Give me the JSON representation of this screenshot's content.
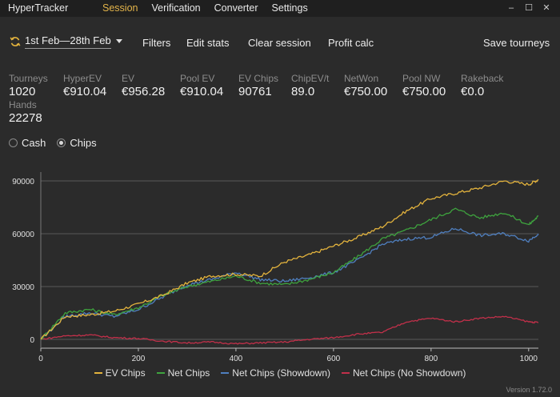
{
  "app": {
    "title": "HyperTracker",
    "version": "Version 1.72.0"
  },
  "menu": {
    "items": [
      {
        "label": "Session",
        "active": true
      },
      {
        "label": "Verification",
        "active": false
      },
      {
        "label": "Converter",
        "active": false
      },
      {
        "label": "Settings",
        "active": false
      }
    ]
  },
  "window_controls": {
    "minimize": "–",
    "maximize": "☐",
    "close": "✕"
  },
  "toolbar": {
    "date_range": "1st Feb—28th Feb",
    "filters": "Filters",
    "edit_stats": "Edit stats",
    "clear_session": "Clear session",
    "profit_calc": "Profit calc",
    "save_tourneys": "Save tourneys"
  },
  "stats": [
    {
      "label": "Tourneys",
      "value": "1020"
    },
    {
      "label": "HyperEV",
      "value": "€910.04"
    },
    {
      "label": "EV",
      "value": "€956.28"
    },
    {
      "label": "Pool EV",
      "value": "€910.04"
    },
    {
      "label": "EV Chips",
      "value": "90761"
    },
    {
      "label": "ChipEV/t",
      "value": "89.0"
    },
    {
      "label": "NetWon",
      "value": "€750.00"
    },
    {
      "label": "Pool NW",
      "value": "€750.00"
    },
    {
      "label": "Rakeback",
      "value": "€0.0"
    },
    {
      "label": "Hands",
      "value": "22278"
    }
  ],
  "mode": {
    "options": [
      {
        "label": "Cash",
        "checked": false
      },
      {
        "label": "Chips",
        "checked": true
      }
    ]
  },
  "colors": {
    "ev_chips": "#e3b33d",
    "net_chips": "#3ea33e",
    "net_showdown": "#4f7fbf",
    "net_noshowdown": "#c2304a",
    "grid": "#5a5a5a",
    "axis_text": "#e0e0e0"
  },
  "chart_data": {
    "type": "line",
    "xlim": [
      0,
      1020
    ],
    "ylim": [
      -5000,
      95000
    ],
    "xticks": [
      0,
      200,
      400,
      600,
      800,
      1000
    ],
    "yticks": [
      0,
      30000,
      60000,
      90000
    ],
    "grid": true,
    "legend_position": "bottom",
    "series": [
      {
        "name": "EV Chips",
        "x": [
          0,
          50,
          100,
          150,
          200,
          250,
          300,
          350,
          400,
          450,
          500,
          550,
          600,
          650,
          700,
          750,
          800,
          850,
          900,
          950,
          1000,
          1020
        ],
        "values": [
          0,
          13000,
          14000,
          16000,
          20000,
          25000,
          32000,
          36000,
          37000,
          36000,
          44000,
          48000,
          53000,
          58000,
          64000,
          73000,
          80000,
          83000,
          86000,
          90000,
          88000,
          90761
        ]
      },
      {
        "name": "Net Chips",
        "x": [
          0,
          50,
          100,
          150,
          200,
          250,
          300,
          350,
          400,
          450,
          500,
          550,
          600,
          650,
          700,
          750,
          800,
          850,
          900,
          950,
          1000,
          1020
        ],
        "values": [
          0,
          15000,
          17000,
          14000,
          18000,
          25000,
          30000,
          33000,
          36000,
          32000,
          31000,
          34000,
          38000,
          47000,
          57000,
          62000,
          68000,
          74000,
          69000,
          72000,
          65000,
          70000
        ]
      },
      {
        "name": "Net Chips (Showdown)",
        "x": [
          0,
          50,
          100,
          150,
          200,
          250,
          300,
          350,
          400,
          450,
          500,
          550,
          600,
          650,
          700,
          750,
          800,
          850,
          900,
          950,
          1000,
          1020
        ],
        "values": [
          0,
          13000,
          15000,
          13000,
          17000,
          24000,
          31000,
          34000,
          38000,
          34000,
          33000,
          35000,
          38000,
          45000,
          54000,
          57000,
          58000,
          63000,
          59000,
          60000,
          56000,
          60000
        ]
      },
      {
        "name": "Net Chips (No Showdown)",
        "x": [
          0,
          50,
          100,
          150,
          200,
          250,
          300,
          350,
          400,
          450,
          500,
          550,
          600,
          650,
          700,
          750,
          800,
          850,
          900,
          950,
          1000,
          1020
        ],
        "values": [
          0,
          2000,
          2500,
          1000,
          500,
          -1000,
          -2000,
          -1500,
          -2500,
          -2000,
          -1500,
          0,
          1000,
          3000,
          4000,
          10000,
          12000,
          10000,
          12000,
          13000,
          10000,
          9500
        ]
      }
    ]
  }
}
